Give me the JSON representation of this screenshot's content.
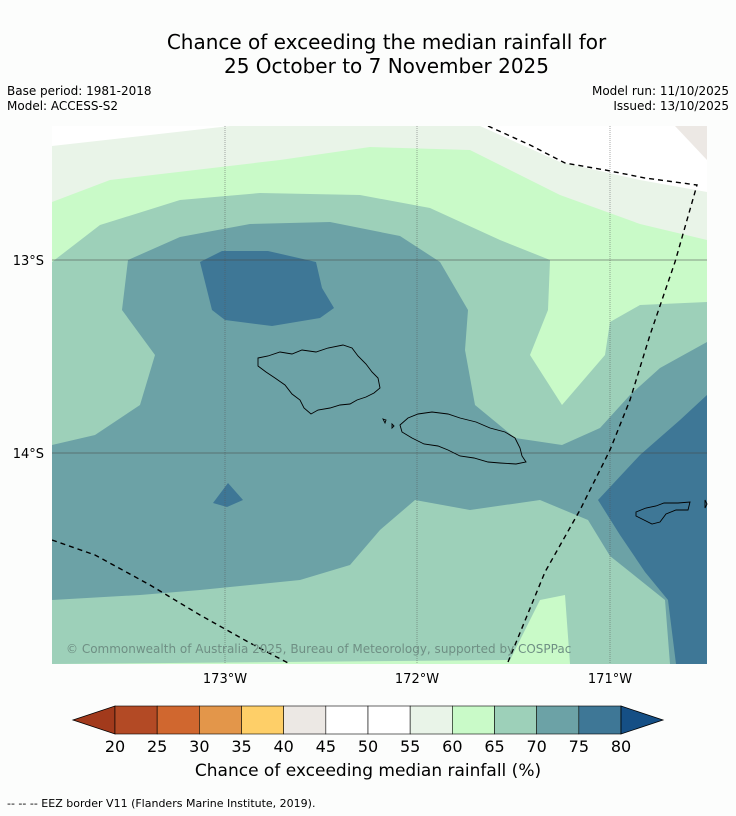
{
  "title_line1": "Chance of exceeding the median rainfall for",
  "title_line2": "25 October to 7 November 2025",
  "meta": {
    "base_period": "Base period: 1981-2018",
    "model": "Model: ACCESS-S2",
    "model_run": "Model run: 11/10/2025",
    "issued": "Issued: 13/10/2025"
  },
  "map": {
    "lat_labels": [
      "13°S",
      "14°S"
    ],
    "lon_labels": [
      "173°W",
      "172°W",
      "171°W"
    ],
    "copyright": "© Commonwealth of Australia 2025, Bureau of Meteorology, supported by COSPPac"
  },
  "legend": {
    "ticks": [
      "20",
      "25",
      "30",
      "35",
      "40",
      "45",
      "50",
      "55",
      "60",
      "65",
      "70",
      "75",
      "80"
    ],
    "colors": [
      "#b34a25",
      "#d0672f",
      "#e3964a",
      "#fecf68",
      "#ece8e4",
      "#ffffff",
      "#ffffff",
      "#e9f4e8",
      "#c9fac8",
      "#9dd0b9",
      "#6ca2a6",
      "#3e7796"
    ],
    "under_color": "#a23a1c",
    "over_color": "#154f85",
    "caption": "Chance of exceeding median rainfall (%)"
  },
  "footnote": "--  --  -- EEZ border V11 (Flanders Marine Institute, 2019)."
}
